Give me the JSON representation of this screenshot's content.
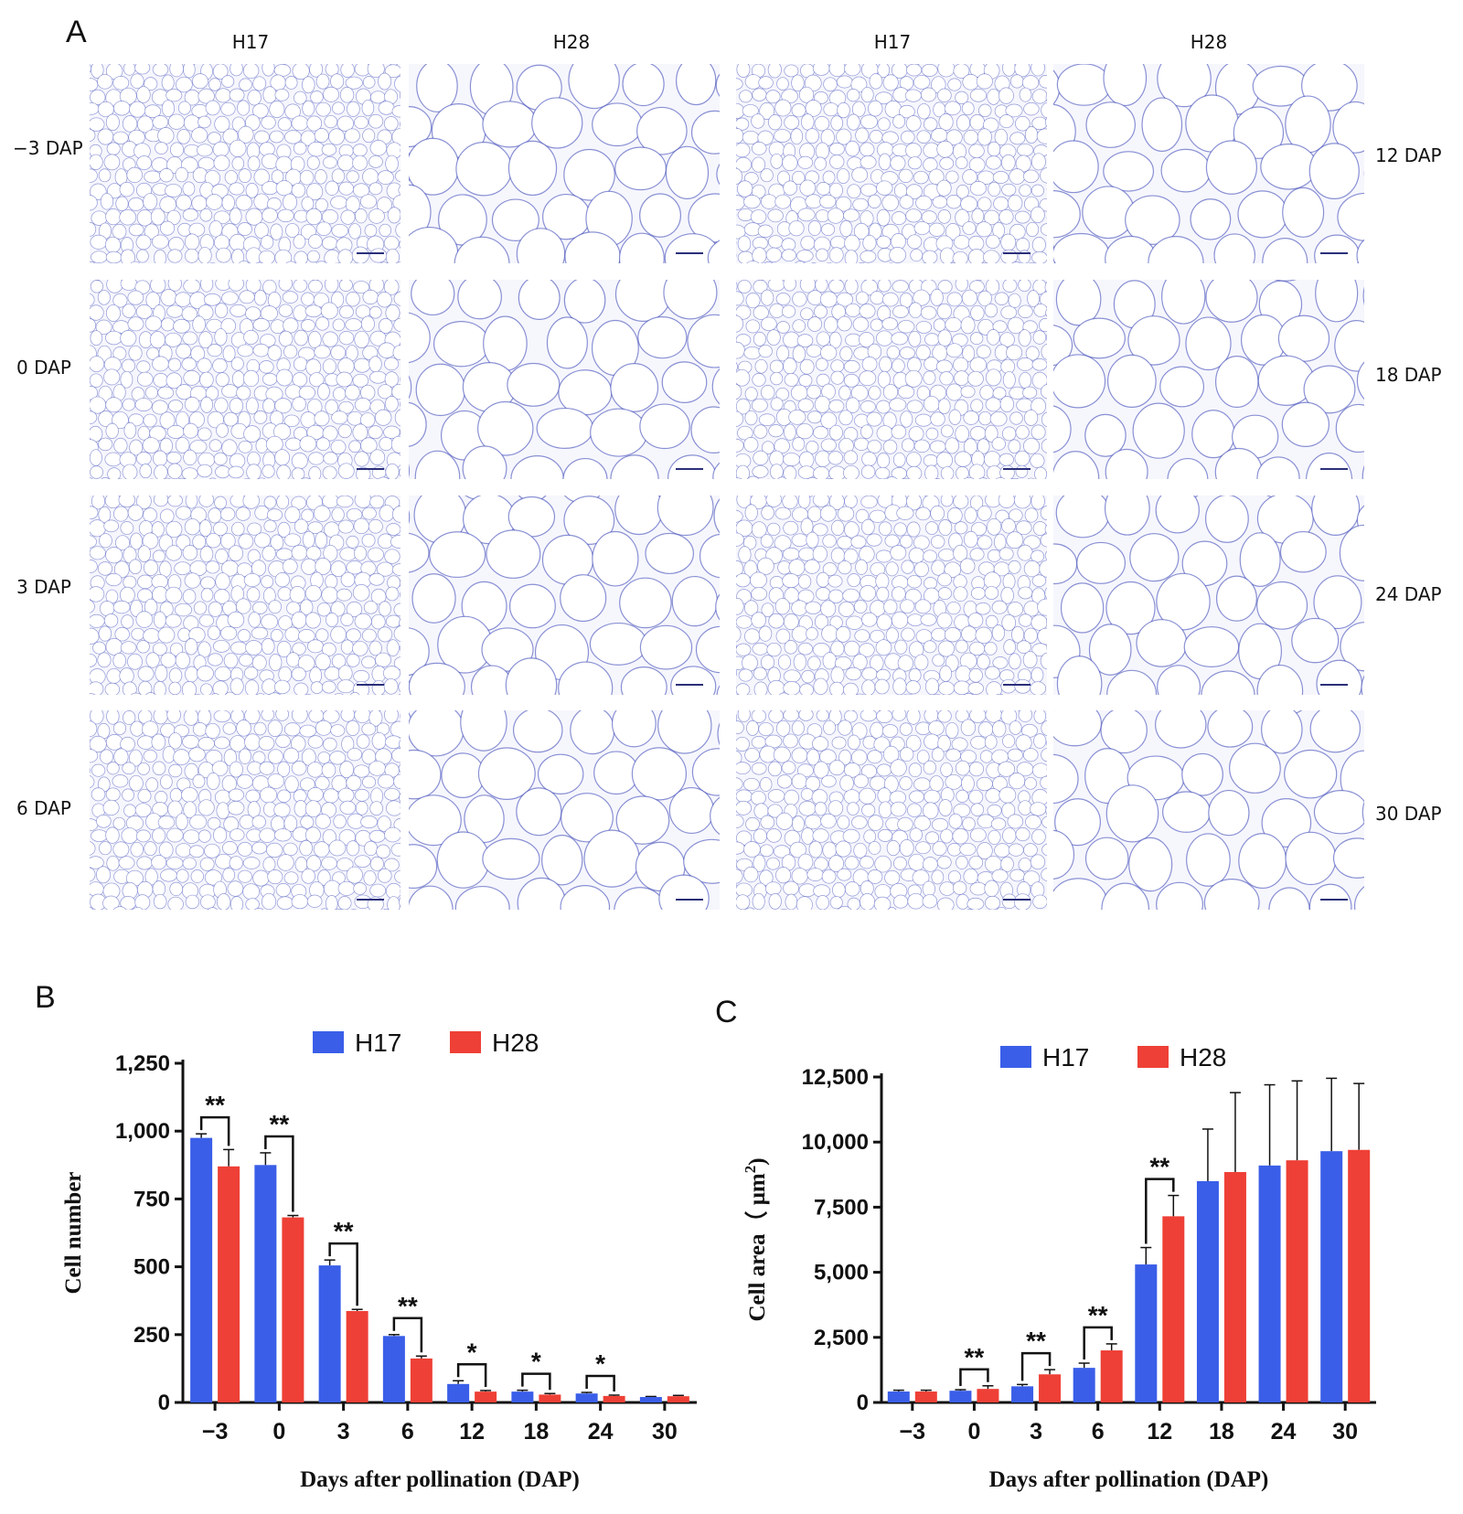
{
  "panel_labels": {
    "a": "A",
    "b": "B",
    "c": "C"
  },
  "micrograph": {
    "column_headers": [
      "H17",
      "H28",
      "H17",
      "H28"
    ],
    "left_row_labels": [
      "−3 DAP",
      "0 DAP",
      "3 DAP",
      "6 DAP"
    ],
    "right_row_labels": [
      "12 DAP",
      "18 DAP",
      "24 DAP",
      "30 DAP"
    ],
    "stain_color": "#3d49b8"
  },
  "chart_data": [
    {
      "type": "bar",
      "panel": "B",
      "categories": [
        "−3",
        "0",
        "3",
        "6",
        "12",
        "18",
        "24",
        "30"
      ],
      "series": [
        {
          "name": "H17",
          "color": "#3a5ee8",
          "values": [
            975,
            875,
            505,
            245,
            68,
            40,
            33,
            20
          ],
          "errors": [
            15,
            45,
            20,
            5,
            12,
            5,
            4,
            2
          ]
        },
        {
          "name": "H28",
          "color": "#ee4036",
          "values": [
            870,
            682,
            337,
            162,
            40,
            29,
            24,
            23
          ],
          "errors": [
            62,
            7,
            6,
            9,
            4,
            4,
            3,
            3
          ]
        }
      ],
      "significance": [
        "**",
        "**",
        "**",
        "**",
        "*",
        "*",
        "*",
        ""
      ],
      "xlabel": "Days after pollination (DAP)",
      "ylabel": "Cell number",
      "ylim": [
        0,
        1250
      ],
      "yticks": [
        0,
        250,
        500,
        750,
        1000,
        1250
      ],
      "ytick_labels": [
        "0",
        "250",
        "500",
        "750",
        "1,000",
        "1,250"
      ],
      "legend": "top-center"
    },
    {
      "type": "bar",
      "panel": "C",
      "categories": [
        "−3",
        "0",
        "3",
        "6",
        "12",
        "18",
        "24",
        "30"
      ],
      "series": [
        {
          "name": "H17",
          "color": "#3a5ee8",
          "values": [
            420,
            450,
            620,
            1330,
            5300,
            8500,
            9100,
            9650
          ],
          "errors": [
            50,
            40,
            70,
            180,
            650,
            2000,
            3100,
            2800
          ]
        },
        {
          "name": "H28",
          "color": "#ee4036",
          "values": [
            420,
            520,
            1080,
            2000,
            7150,
            8850,
            9300,
            9700
          ],
          "errors": [
            50,
            120,
            180,
            250,
            800,
            3050,
            3050,
            2550
          ]
        }
      ],
      "significance": [
        "",
        "**",
        "**",
        "**",
        "**",
        "",
        "",
        ""
      ],
      "xlabel": "Days after pollination (DAP)",
      "ylabel": "Cell area（ μm",
      "ylabel_superscript": "2",
      "ylabel_close": ")",
      "ylim": [
        0,
        12500
      ],
      "yticks": [
        0,
        2500,
        5000,
        7500,
        10000,
        12500
      ],
      "ytick_labels": [
        "0",
        "2,500",
        "5,000",
        "7,500",
        "10,000",
        "12,500"
      ],
      "legend": "top-center"
    }
  ]
}
